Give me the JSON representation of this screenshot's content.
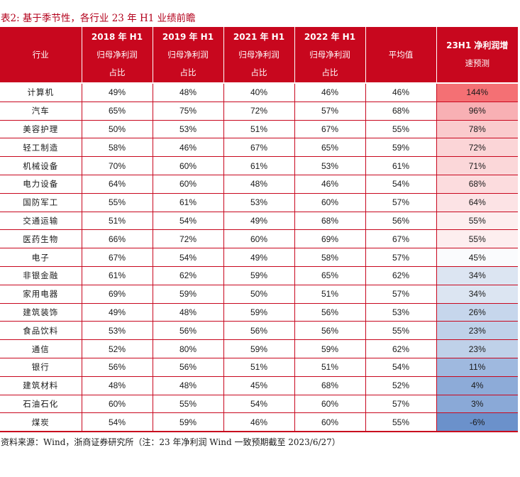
{
  "title": "表2:  基于季节性，各行业 23 年 H1 业绩前瞻",
  "headers": {
    "industry": "行业",
    "y2018": [
      "2018 年 H1",
      "归母净利润",
      "占比"
    ],
    "y2019": [
      "2019 年 H1",
      "归母净利润",
      "占比"
    ],
    "y2021": [
      "2021 年 H1",
      "归母净利润",
      "占比"
    ],
    "y2022": [
      "2022 年 H1",
      "归母净利润",
      "占比"
    ],
    "avg": "平均值",
    "forecast": [
      "23H1 净利润增",
      "速预测"
    ]
  },
  "rows": [
    {
      "industry": "计算机",
      "y2018": "49%",
      "y2019": "48%",
      "y2021": "40%",
      "y2022": "46%",
      "avg": "46%",
      "forecast": "144%",
      "color": "#f47074"
    },
    {
      "industry": "汽车",
      "y2018": "65%",
      "y2019": "75%",
      "y2021": "72%",
      "y2022": "57%",
      "avg": "68%",
      "forecast": "96%",
      "color": "#f8b0b4"
    },
    {
      "industry": "美容护理",
      "y2018": "50%",
      "y2019": "53%",
      "y2021": "51%",
      "y2022": "67%",
      "avg": "55%",
      "forecast": "78%",
      "color": "#facbcd"
    },
    {
      "industry": "轻工制造",
      "y2018": "58%",
      "y2019": "46%",
      "y2021": "67%",
      "y2022": "65%",
      "avg": "59%",
      "forecast": "72%",
      "color": "#fbd5d7"
    },
    {
      "industry": "机械设备",
      "y2018": "70%",
      "y2019": "60%",
      "y2021": "61%",
      "y2022": "53%",
      "avg": "61%",
      "forecast": "71%",
      "color": "#fbd7d9"
    },
    {
      "industry": "电力设备",
      "y2018": "64%",
      "y2019": "60%",
      "y2021": "48%",
      "y2022": "46%",
      "avg": "54%",
      "forecast": "68%",
      "color": "#fcdcde"
    },
    {
      "industry": "国防军工",
      "y2018": "55%",
      "y2019": "61%",
      "y2021": "53%",
      "y2022": "60%",
      "avg": "57%",
      "forecast": "64%",
      "color": "#fce3e5"
    },
    {
      "industry": "交通运输",
      "y2018": "51%",
      "y2019": "54%",
      "y2021": "49%",
      "y2022": "68%",
      "avg": "56%",
      "forecast": "55%",
      "color": "#fdeeef"
    },
    {
      "industry": "医药生物",
      "y2018": "66%",
      "y2019": "72%",
      "y2021": "60%",
      "y2022": "69%",
      "avg": "67%",
      "forecast": "55%",
      "color": "#fdeeef"
    },
    {
      "industry": "电子",
      "y2018": "67%",
      "y2019": "54%",
      "y2021": "49%",
      "y2022": "58%",
      "avg": "57%",
      "forecast": "45%",
      "color": "#fafbfd"
    },
    {
      "industry": "非银金融",
      "y2018": "61%",
      "y2019": "62%",
      "y2021": "59%",
      "y2022": "65%",
      "avg": "62%",
      "forecast": "34%",
      "color": "#dce5f2"
    },
    {
      "industry": "家用电器",
      "y2018": "69%",
      "y2019": "59%",
      "y2021": "50%",
      "y2022": "51%",
      "avg": "57%",
      "forecast": "34%",
      "color": "#dce5f2"
    },
    {
      "industry": "建筑装饰",
      "y2018": "49%",
      "y2019": "48%",
      "y2021": "59%",
      "y2022": "56%",
      "avg": "53%",
      "forecast": "26%",
      "color": "#c6d6ec"
    },
    {
      "industry": "食品饮料",
      "y2018": "53%",
      "y2019": "56%",
      "y2021": "56%",
      "y2022": "56%",
      "avg": "55%",
      "forecast": "23%",
      "color": "#bfd1e9"
    },
    {
      "industry": "通信",
      "y2018": "52%",
      "y2019": "80%",
      "y2021": "59%",
      "y2022": "59%",
      "avg": "62%",
      "forecast": "23%",
      "color": "#bfd1e9"
    },
    {
      "industry": "银行",
      "y2018": "56%",
      "y2019": "56%",
      "y2021": "51%",
      "y2022": "51%",
      "avg": "54%",
      "forecast": "11%",
      "color": "#9fb9df"
    },
    {
      "industry": "建筑材料",
      "y2018": "48%",
      "y2019": "48%",
      "y2021": "45%",
      "y2022": "68%",
      "avg": "52%",
      "forecast": "4%",
      "color": "#8dabd8"
    },
    {
      "industry": "石油石化",
      "y2018": "60%",
      "y2019": "55%",
      "y2021": "54%",
      "y2022": "60%",
      "avg": "57%",
      "forecast": "3%",
      "color": "#8aa9d7"
    },
    {
      "industry": "煤炭",
      "y2018": "54%",
      "y2019": "59%",
      "y2021": "46%",
      "y2022": "60%",
      "avg": "55%",
      "forecast": "-6%",
      "color": "#6b91cb"
    }
  ],
  "footer": "资料来源：Wind，浙商证券研究所（注：23 年净利润 Wind 一致预期截至 2023/6/27）"
}
